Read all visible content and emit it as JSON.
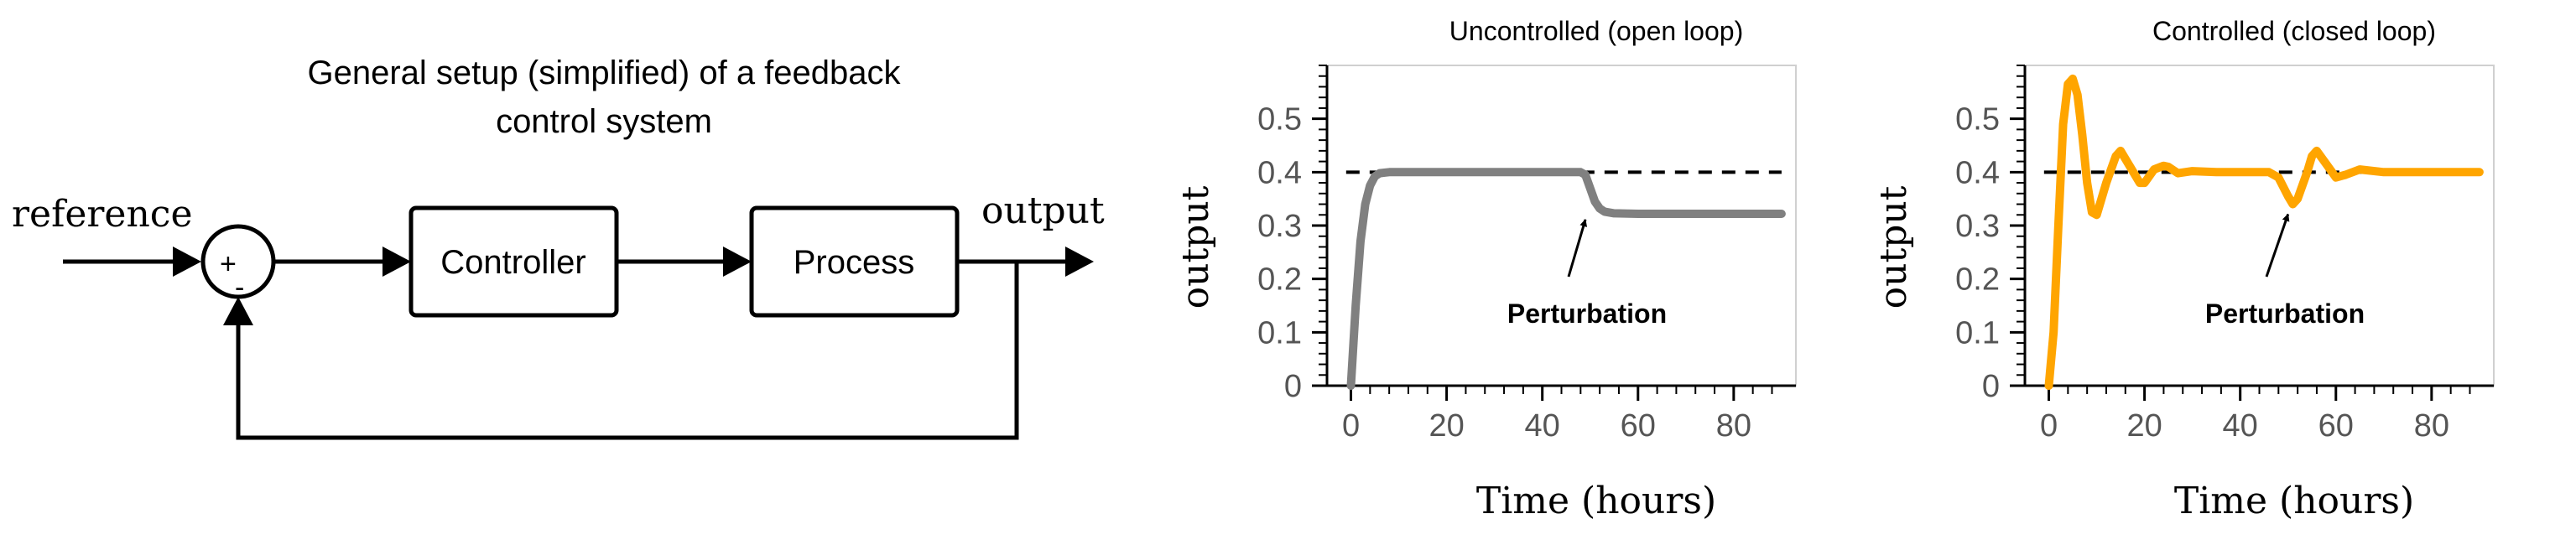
{
  "diagram": {
    "title_line1": "General setup (simplified) of a feedback",
    "title_line2": "control system",
    "reference_label": "reference",
    "output_label": "output",
    "controller_label": "Controller",
    "process_label": "Process",
    "plus_sign": "+",
    "minus_sign": "-"
  },
  "chart_data": [
    {
      "type": "line",
      "title": "Uncontrolled (open loop)",
      "xlabel": "Time (hours)",
      "ylabel": "output",
      "xlim": [
        -5,
        93
      ],
      "ylim": [
        0,
        0.6
      ],
      "xticks": [
        "0",
        "20",
        "40",
        "60",
        "80"
      ],
      "yticks": [
        "0",
        "0.1",
        "0.2",
        "0.3",
        "0.4",
        "0.5"
      ],
      "reference_line": 0.4,
      "annotation": "Perturbation",
      "annotation_target": [
        49,
        0.33
      ],
      "series_color": "#808080",
      "x": [
        0,
        1,
        2,
        3,
        4,
        5,
        6,
        8,
        10,
        20,
        30,
        40,
        48,
        49,
        50,
        51,
        52,
        53,
        55,
        60,
        70,
        80,
        90
      ],
      "y": [
        0,
        0.15,
        0.27,
        0.34,
        0.375,
        0.392,
        0.398,
        0.4,
        0.4,
        0.4,
        0.4,
        0.4,
        0.4,
        0.395,
        0.37,
        0.345,
        0.332,
        0.326,
        0.323,
        0.322,
        0.322,
        0.322,
        0.322
      ]
    },
    {
      "type": "line",
      "title": "Controlled (closed loop)",
      "xlabel": "Time (hours)",
      "ylabel": "output",
      "xlim": [
        -5,
        93
      ],
      "ylim": [
        0,
        0.6
      ],
      "xticks": [
        "0",
        "20",
        "40",
        "60",
        "80"
      ],
      "yticks": [
        "0",
        "0.1",
        "0.2",
        "0.3",
        "0.4",
        "0.5"
      ],
      "reference_line": 0.4,
      "annotation": "Perturbation",
      "annotation_target": [
        50,
        0.34
      ],
      "series_color": "#ffa500",
      "x": [
        0,
        1,
        2,
        3,
        4,
        5,
        6,
        7,
        8,
        9,
        10,
        12,
        14,
        15,
        17,
        19,
        20,
        22,
        24,
        25,
        27,
        30,
        35,
        40,
        46,
        48,
        50,
        51,
        52,
        54,
        55,
        56,
        58,
        60,
        62,
        65,
        70,
        80,
        90
      ],
      "y": [
        0,
        0.1,
        0.3,
        0.49,
        0.565,
        0.575,
        0.545,
        0.47,
        0.38,
        0.325,
        0.32,
        0.38,
        0.43,
        0.44,
        0.41,
        0.38,
        0.38,
        0.405,
        0.412,
        0.41,
        0.398,
        0.402,
        0.4,
        0.4,
        0.4,
        0.39,
        0.355,
        0.34,
        0.35,
        0.4,
        0.43,
        0.44,
        0.415,
        0.39,
        0.395,
        0.405,
        0.4,
        0.4,
        0.4
      ]
    }
  ]
}
